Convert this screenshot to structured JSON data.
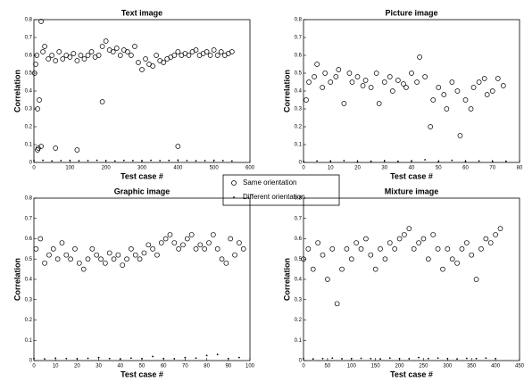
{
  "chart_data": [
    {
      "type": "scatter",
      "title": "Text image",
      "x_label": "Test case #",
      "y_label": "Correlation",
      "xlim": [
        0,
        600
      ],
      "ylim": [
        0,
        0.8
      ],
      "xticks": [
        0,
        100,
        200,
        300,
        400,
        500,
        600
      ],
      "yticks": [
        0,
        0.1,
        0.2,
        0.3,
        0.4,
        0.5,
        0.6,
        0.7,
        0.8
      ],
      "series": [
        {
          "name": "Same orientation",
          "marker": "circle",
          "color": "#000000",
          "x": [
            2,
            5,
            8,
            10,
            15,
            20,
            25,
            30,
            40,
            50,
            60,
            70,
            80,
            90,
            100,
            110,
            120,
            130,
            140,
            150,
            160,
            170,
            180,
            190,
            200,
            210,
            220,
            230,
            240,
            250,
            260,
            270,
            280,
            290,
            300,
            310,
            320,
            330,
            340,
            350,
            360,
            370,
            380,
            390,
            400,
            410,
            420,
            430,
            440,
            450,
            460,
            470,
            480,
            490,
            500,
            510,
            520,
            530,
            540,
            550,
            10,
            12,
            20,
            190,
            60,
            120,
            400
          ],
          "values": [
            0.5,
            0.55,
            0.6,
            0.3,
            0.35,
            0.79,
            0.62,
            0.65,
            0.58,
            0.6,
            0.57,
            0.62,
            0.58,
            0.6,
            0.59,
            0.61,
            0.57,
            0.6,
            0.58,
            0.6,
            0.62,
            0.59,
            0.6,
            0.65,
            0.68,
            0.63,
            0.62,
            0.64,
            0.6,
            0.63,
            0.62,
            0.6,
            0.65,
            0.56,
            0.52,
            0.58,
            0.55,
            0.54,
            0.6,
            0.57,
            0.56,
            0.58,
            0.59,
            0.6,
            0.62,
            0.6,
            0.61,
            0.6,
            0.62,
            0.63,
            0.6,
            0.61,
            0.62,
            0.6,
            0.63,
            0.6,
            0.62,
            0.6,
            0.61,
            0.62,
            0.07,
            0.08,
            0.09,
            0.34,
            0.08,
            0.07,
            0.09
          ]
        },
        {
          "name": "Different orientation",
          "marker": "dot",
          "color": "#000000",
          "x": [
            0,
            25,
            50,
            75,
            100,
            125,
            150,
            175,
            200,
            225,
            250,
            275,
            300,
            325,
            350,
            375,
            400,
            425,
            450,
            475,
            500,
            525,
            550
          ],
          "values": [
            0.01,
            0.012,
            0.008,
            0.01,
            0.011,
            0.009,
            0.01,
            0.012,
            0.01,
            0.008,
            0.011,
            0.01,
            0.009,
            0.012,
            0.01,
            0.011,
            0.013,
            0.01,
            0.009,
            0.01,
            0.012,
            0.01,
            0.008
          ]
        }
      ]
    },
    {
      "type": "scatter",
      "title": "Picture image",
      "x_label": "Test case #",
      "y_label": "Correlation",
      "xlim": [
        0,
        80
      ],
      "ylim": [
        0,
        0.8
      ],
      "xticks": [
        0,
        10,
        20,
        30,
        40,
        50,
        60,
        70,
        80
      ],
      "yticks": [
        0,
        0.1,
        0.2,
        0.3,
        0.4,
        0.5,
        0.6,
        0.7,
        0.8
      ],
      "series": [
        {
          "name": "Same orientation",
          "marker": "circle",
          "color": "#000000",
          "x": [
            1,
            2,
            4,
            5,
            7,
            8,
            10,
            12,
            13,
            15,
            17,
            18,
            20,
            22,
            23,
            25,
            27,
            28,
            30,
            32,
            33,
            35,
            37,
            38,
            40,
            42,
            43,
            45,
            47,
            48,
            50,
            52,
            53,
            55,
            57,
            58,
            60,
            62,
            63,
            65,
            67,
            68,
            70,
            72,
            74
          ],
          "values": [
            0.35,
            0.45,
            0.48,
            0.55,
            0.42,
            0.5,
            0.45,
            0.48,
            0.52,
            0.33,
            0.5,
            0.45,
            0.48,
            0.43,
            0.46,
            0.42,
            0.5,
            0.33,
            0.45,
            0.48,
            0.4,
            0.46,
            0.44,
            0.42,
            0.5,
            0.45,
            0.59,
            0.48,
            0.2,
            0.35,
            0.42,
            0.38,
            0.3,
            0.45,
            0.4,
            0.15,
            0.35,
            0.3,
            0.42,
            0.45,
            0.47,
            0.38,
            0.4,
            0.47,
            0.43
          ]
        },
        {
          "name": "Different orientation",
          "marker": "dot",
          "color": "#000000",
          "x": [
            0,
            5,
            10,
            15,
            20,
            25,
            30,
            35,
            40,
            45,
            50,
            55,
            60,
            65,
            70,
            75
          ],
          "values": [
            0.005,
            0.008,
            0.006,
            0.01,
            0.005,
            0.007,
            0.009,
            0.006,
            0.008,
            0.015,
            0.005,
            0.012,
            0.006,
            0.008,
            0.005,
            0.007
          ]
        }
      ]
    },
    {
      "type": "scatter",
      "title": "Graphic image",
      "x_label": "Test case #",
      "y_label": "Correlation",
      "xlim": [
        0,
        100
      ],
      "ylim": [
        0,
        0.8
      ],
      "xticks": [
        0,
        10,
        20,
        30,
        40,
        50,
        60,
        70,
        80,
        90,
        100
      ],
      "yticks": [
        0,
        0.1,
        0.2,
        0.3,
        0.4,
        0.5,
        0.6,
        0.7,
        0.8
      ],
      "series": [
        {
          "name": "Same orientation",
          "marker": "circle",
          "color": "#000000",
          "x": [
            1,
            3,
            5,
            7,
            9,
            11,
            13,
            15,
            17,
            19,
            21,
            23,
            25,
            27,
            29,
            31,
            33,
            35,
            37,
            39,
            41,
            43,
            45,
            47,
            49,
            51,
            53,
            55,
            57,
            59,
            61,
            63,
            65,
            67,
            69,
            71,
            73,
            75,
            77,
            79,
            81,
            83,
            85,
            87,
            89,
            91,
            93,
            95,
            97
          ],
          "values": [
            0.55,
            0.6,
            0.48,
            0.52,
            0.55,
            0.5,
            0.58,
            0.52,
            0.5,
            0.55,
            0.48,
            0.45,
            0.5,
            0.55,
            0.52,
            0.5,
            0.48,
            0.53,
            0.5,
            0.52,
            0.47,
            0.5,
            0.55,
            0.52,
            0.5,
            0.53,
            0.57,
            0.55,
            0.52,
            0.58,
            0.6,
            0.62,
            0.58,
            0.55,
            0.57,
            0.6,
            0.62,
            0.55,
            0.57,
            0.55,
            0.58,
            0.62,
            0.55,
            0.5,
            0.48,
            0.6,
            0.52,
            0.58,
            0.55
          ]
        },
        {
          "name": "Different orientation",
          "marker": "dot",
          "color": "#000000",
          "x": [
            0,
            5,
            10,
            15,
            20,
            25,
            30,
            35,
            40,
            45,
            50,
            55,
            60,
            65,
            70,
            75,
            80,
            85,
            90,
            95
          ],
          "values": [
            0.01,
            0.008,
            0.012,
            0.01,
            0.009,
            0.011,
            0.015,
            0.01,
            0.008,
            0.012,
            0.01,
            0.02,
            0.01,
            0.009,
            0.015,
            0.012,
            0.025,
            0.03,
            0.01,
            0.015
          ]
        }
      ]
    },
    {
      "type": "scatter",
      "title": "Mixture image",
      "x_label": "Test case #",
      "y_label": "Correlation",
      "xlim": [
        0,
        450
      ],
      "ylim": [
        0,
        0.8
      ],
      "xticks": [
        0,
        50,
        100,
        150,
        200,
        250,
        300,
        350,
        400,
        450
      ],
      "yticks": [
        0,
        0.1,
        0.2,
        0.3,
        0.4,
        0.5,
        0.6,
        0.7,
        0.8
      ],
      "series": [
        {
          "name": "Same orientation",
          "marker": "circle",
          "color": "#000000",
          "x": [
            0,
            10,
            20,
            30,
            40,
            50,
            60,
            70,
            80,
            90,
            100,
            110,
            120,
            130,
            140,
            150,
            160,
            170,
            180,
            190,
            200,
            210,
            220,
            230,
            240,
            250,
            260,
            270,
            280,
            290,
            300,
            310,
            320,
            330,
            340,
            350,
            360,
            370,
            380,
            390,
            400,
            410
          ],
          "values": [
            0.5,
            0.55,
            0.45,
            0.58,
            0.52,
            0.4,
            0.55,
            0.28,
            0.45,
            0.55,
            0.5,
            0.58,
            0.55,
            0.6,
            0.52,
            0.45,
            0.55,
            0.5,
            0.58,
            0.55,
            0.6,
            0.62,
            0.65,
            0.55,
            0.58,
            0.6,
            0.5,
            0.62,
            0.55,
            0.45,
            0.55,
            0.5,
            0.48,
            0.55,
            0.58,
            0.52,
            0.4,
            0.55,
            0.6,
            0.58,
            0.62,
            0.65
          ]
        },
        {
          "name": "Different orientation",
          "marker": "dot",
          "color": "#000000",
          "x": [
            0,
            20,
            40,
            60,
            80,
            100,
            120,
            140,
            160,
            180,
            200,
            220,
            240,
            260,
            280,
            300,
            320,
            340,
            360,
            380,
            400
          ],
          "values": [
            0.01,
            0.008,
            0.01,
            0.012,
            0.009,
            0.01,
            0.011,
            0.01,
            0.008,
            0.012,
            0.01,
            0.009,
            0.015,
            0.01,
            0.012,
            0.01,
            0.008,
            0.011,
            0.01,
            0.012,
            0.01
          ]
        }
      ]
    }
  ]
}
